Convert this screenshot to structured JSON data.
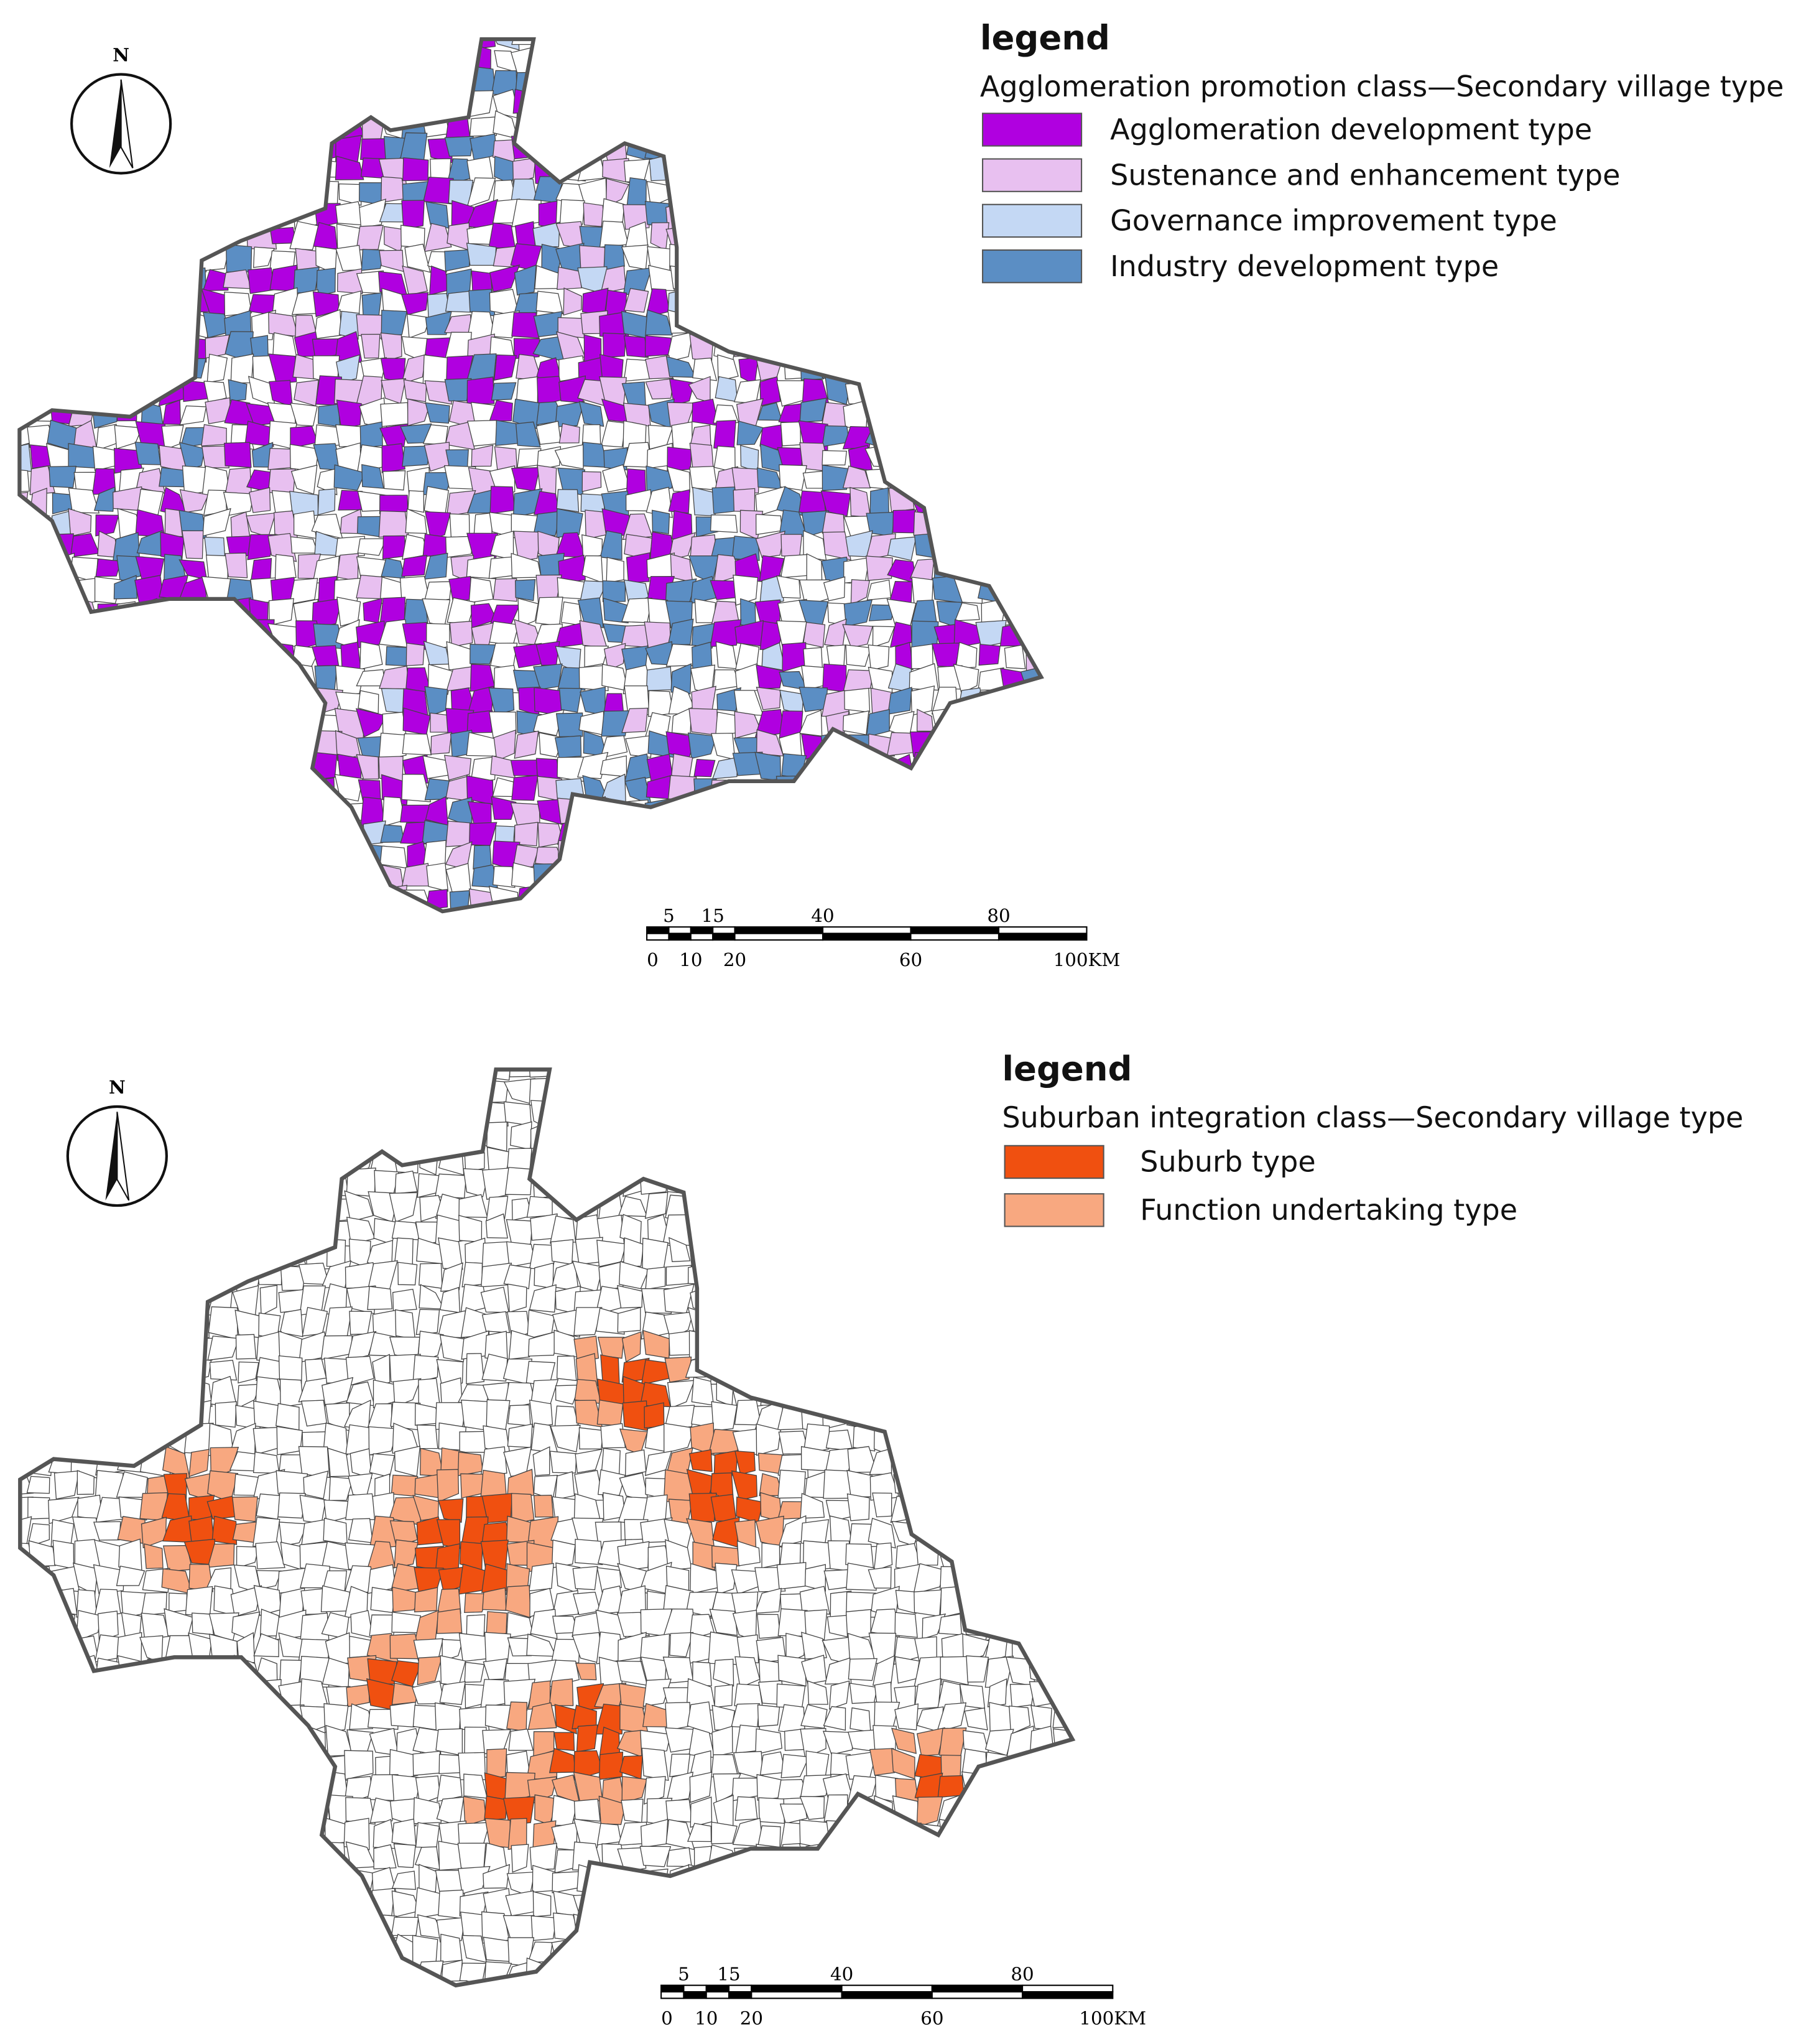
{
  "maps": [
    {
      "legend_title": "legend",
      "subtitle": "Agglomeration promotion class—Secondary village type",
      "items": [
        {
          "label": "Agglomeration development type",
          "color": "#b000e0"
        },
        {
          "label": "Sustenance and enhancement type",
          "color": "#e8c0f0"
        },
        {
          "label": "Governance improvement type",
          "color": "#c4d8f4"
        },
        {
          "label": "Industry development  type",
          "color": "#5b8ec4"
        }
      ],
      "north": "N",
      "scale": {
        "top": [
          "5",
          "15",
          "40",
          "80"
        ],
        "bottom": [
          "0",
          "10",
          "20",
          "60",
          "100KM"
        ]
      }
    },
    {
      "legend_title": "legend",
      "subtitle": "Suburban integration class—Secondary village type",
      "items": [
        {
          "label": "Suburb type",
          "color": "#f05010"
        },
        {
          "label": "Function undertaking type",
          "color": "#f8a880"
        }
      ],
      "north": "N",
      "scale": {
        "top": [
          "5",
          "15",
          "40",
          "80"
        ],
        "bottom": [
          "0",
          "10",
          "20",
          "60",
          "100KM"
        ]
      }
    }
  ]
}
